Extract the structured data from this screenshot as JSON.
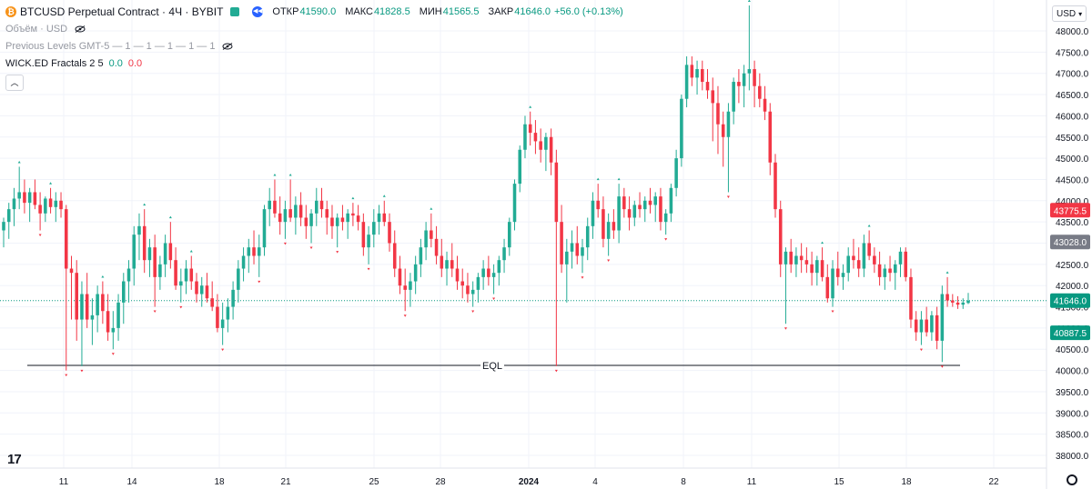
{
  "legend": {
    "symbol": "BTCUSD Perpetual Contract · 4Ч · BYBIT",
    "ohlc": [
      {
        "label": "ОТКР",
        "value": "41590.0"
      },
      {
        "label": "МАКС",
        "value": "41828.5"
      },
      {
        "label": "МИН",
        "value": "41565.5"
      },
      {
        "label": "ЗАКР",
        "value": "41646.0"
      }
    ],
    "change": "+56.0 (+0.13%)",
    "volume_label": "Объём · USD",
    "prev_levels_label": "Previous Levels GMT-5 — 1 — 1 — 1 — 1 — 1",
    "fractals_label": "WICK.ED Fractals 2 5",
    "fractals_val1": "0.0",
    "fractals_val2": "0.0"
  },
  "currency": "USD",
  "colors": {
    "up": "#22ab94",
    "down": "#f23645",
    "grid": "#f0f3fa",
    "axis_text": "#131722",
    "last_price_tag": "#089981",
    "gray_tag": "#787b86"
  },
  "chart_data": {
    "type": "candlestick",
    "y_axis_ticks": [
      "38000.0",
      "38500.0",
      "39000.0",
      "39500.0",
      "40000.0",
      "40500.0",
      "41000.0",
      "41500.0",
      "42000.0",
      "42500.0",
      "43000.0",
      "43500.0",
      "44000.0",
      "44500.0",
      "45000.0",
      "45500.0",
      "46000.0",
      "46500.0",
      "47000.0",
      "47500.0",
      "48000.0"
    ],
    "x_axis_ticks": [
      "11",
      "14",
      "18",
      "21",
      "25",
      "28",
      "2024",
      "4",
      "8",
      "11",
      "15",
      "18",
      "22"
    ],
    "ylim": [
      37700,
      48300
    ],
    "price_tags": [
      {
        "label": "43775.5",
        "value": 43775.5,
        "kind": "down"
      },
      {
        "label": "43028.0",
        "value": 43028.0,
        "kind": "gray"
      },
      {
        "label": "41646.0",
        "value": 41646.0,
        "kind": "last"
      },
      {
        "label": "40887.5",
        "value": 40887.5,
        "kind": "up"
      }
    ],
    "last_price": 41646.0,
    "eql": {
      "label": "EQL",
      "value": 40120
    },
    "candles": [
      [
        43300,
        43600,
        42900,
        43500
      ],
      [
        43500,
        43950,
        43100,
        43800
      ],
      [
        43800,
        44300,
        43400,
        44050
      ],
      [
        44050,
        44800,
        43800,
        44200
      ],
      [
        44200,
        44500,
        43700,
        43950
      ],
      [
        43950,
        44300,
        43500,
        44200
      ],
      [
        44200,
        44500,
        43800,
        43900
      ],
      [
        43900,
        44200,
        43300,
        43700
      ],
      [
        43700,
        44100,
        43500,
        44050
      ],
      [
        44050,
        44300,
        43700,
        43850
      ],
      [
        43850,
        44200,
        43500,
        44000
      ],
      [
        44000,
        44200,
        43600,
        43800
      ],
      [
        43800,
        43900,
        40000,
        42400
      ],
      [
        42400,
        42700,
        41200,
        42300
      ],
      [
        42300,
        42600,
        40700,
        41200
      ],
      [
        41200,
        42100,
        40100,
        41800
      ],
      [
        41800,
        42300,
        41000,
        41200
      ],
      [
        41200,
        41700,
        40600,
        41300
      ],
      [
        41300,
        42000,
        40900,
        41800
      ],
      [
        41800,
        42100,
        41100,
        41400
      ],
      [
        41400,
        41800,
        40700,
        40900
      ],
      [
        40900,
        41400,
        40500,
        41000
      ],
      [
        41000,
        41800,
        40700,
        41600
      ],
      [
        41600,
        42300,
        41100,
        42100
      ],
      [
        42100,
        42600,
        41600,
        42400
      ],
      [
        42400,
        43400,
        42000,
        43200
      ],
      [
        43200,
        43700,
        42600,
        43400
      ],
      [
        43400,
        43800,
        42300,
        42600
      ],
      [
        42600,
        43100,
        42200,
        42900
      ],
      [
        42900,
        43200,
        41500,
        42200
      ],
      [
        42200,
        42700,
        41900,
        42500
      ],
      [
        42500,
        43200,
        42200,
        43000
      ],
      [
        43000,
        43500,
        42400,
        42600
      ],
      [
        42600,
        42900,
        41900,
        42000
      ],
      [
        42000,
        42400,
        41600,
        42100
      ],
      [
        42100,
        42600,
        41800,
        42400
      ],
      [
        42400,
        42700,
        41900,
        42100
      ],
      [
        42100,
        42300,
        41600,
        41800
      ],
      [
        41800,
        42200,
        41500,
        42000
      ],
      [
        42000,
        42300,
        41600,
        41700
      ],
      [
        41700,
        42100,
        41400,
        41500
      ],
      [
        41500,
        41800,
        40900,
        41000
      ],
      [
        41000,
        41600,
        40600,
        41200
      ],
      [
        41200,
        41700,
        40900,
        41500
      ],
      [
        41500,
        42100,
        41200,
        41900
      ],
      [
        41900,
        42600,
        41600,
        42400
      ],
      [
        42400,
        42900,
        42100,
        42700
      ],
      [
        42700,
        43100,
        42300,
        42900
      ],
      [
        42900,
        43300,
        42500,
        42700
      ],
      [
        42700,
        43200,
        42200,
        42900
      ],
      [
        42900,
        43900,
        42700,
        43800
      ],
      [
        43800,
        44300,
        43400,
        44000
      ],
      [
        44000,
        44500,
        43600,
        43700
      ],
      [
        43700,
        44100,
        43200,
        43500
      ],
      [
        43500,
        44000,
        43100,
        43800
      ],
      [
        43800,
        44500,
        43500,
        43600
      ],
      [
        43600,
        44100,
        43200,
        43900
      ],
      [
        43900,
        44200,
        43400,
        43600
      ],
      [
        43600,
        43900,
        43100,
        43400
      ],
      [
        43400,
        43800,
        43000,
        43700
      ],
      [
        43700,
        44300,
        43400,
        44000
      ],
      [
        44000,
        44300,
        43600,
        43800
      ],
      [
        43800,
        44000,
        43200,
        43600
      ],
      [
        43600,
        43900,
        43100,
        43400
      ],
      [
        43400,
        43700,
        42900,
        43600
      ],
      [
        43600,
        43900,
        43300,
        43500
      ],
      [
        43500,
        43800,
        43100,
        43700
      ],
      [
        43700,
        43950,
        43400,
        43650
      ],
      [
        43650,
        43900,
        43300,
        43500
      ],
      [
        43500,
        43700,
        42700,
        42900
      ],
      [
        42900,
        43400,
        42500,
        43200
      ],
      [
        43200,
        43800,
        42900,
        43500
      ],
      [
        43500,
        43900,
        43200,
        43700
      ],
      [
        43700,
        44000,
        43400,
        43500
      ],
      [
        43500,
        43700,
        42800,
        43000
      ],
      [
        43000,
        43300,
        42200,
        42400
      ],
      [
        42400,
        42700,
        41800,
        42000
      ],
      [
        42000,
        42400,
        41400,
        41900
      ],
      [
        41900,
        42300,
        41500,
        42100
      ],
      [
        42100,
        42700,
        41800,
        42500
      ],
      [
        42500,
        43100,
        42200,
        42900
      ],
      [
        42900,
        43500,
        42600,
        43300
      ],
      [
        43300,
        43700,
        42900,
        43100
      ],
      [
        43100,
        43400,
        42500,
        42700
      ],
      [
        42700,
        43100,
        42200,
        42400
      ],
      [
        42400,
        42800,
        42000,
        42600
      ],
      [
        42600,
        43000,
        42200,
        42400
      ],
      [
        42400,
        42700,
        41900,
        42100
      ],
      [
        42100,
        42400,
        41700,
        42000
      ],
      [
        42000,
        42300,
        41600,
        41800
      ],
      [
        41800,
        42100,
        41500,
        41900
      ],
      [
        41900,
        42300,
        41600,
        42200
      ],
      [
        42200,
        42600,
        41900,
        42400
      ],
      [
        42400,
        42700,
        42000,
        42200
      ],
      [
        42200,
        42500,
        41800,
        42300
      ],
      [
        42300,
        42700,
        42000,
        42600
      ],
      [
        42600,
        43100,
        42300,
        42900
      ],
      [
        42900,
        43600,
        42700,
        43500
      ],
      [
        43500,
        44500,
        43300,
        44400
      ],
      [
        44400,
        45300,
        44200,
        45200
      ],
      [
        45200,
        46000,
        45000,
        45800
      ],
      [
        45800,
        46100,
        45300,
        45600
      ],
      [
        45600,
        45900,
        45100,
        45400
      ],
      [
        45400,
        45700,
        44900,
        45200
      ],
      [
        45200,
        45600,
        44700,
        45500
      ],
      [
        45500,
        45700,
        44600,
        44900
      ],
      [
        44900,
        45200,
        40100,
        43500
      ],
      [
        43500,
        43900,
        42300,
        42500
      ],
      [
        42500,
        43100,
        41600,
        42800
      ],
      [
        42800,
        43300,
        42400,
        43000
      ],
      [
        43000,
        43400,
        42500,
        42700
      ],
      [
        42700,
        43100,
        42300,
        42900
      ],
      [
        42900,
        43600,
        42600,
        43400
      ],
      [
        43400,
        44200,
        43100,
        44000
      ],
      [
        44000,
        44400,
        43600,
        43800
      ],
      [
        43800,
        44100,
        42900,
        43100
      ],
      [
        43100,
        43700,
        42700,
        43500
      ],
      [
        43500,
        43800,
        43100,
        43300
      ],
      [
        43300,
        44400,
        43000,
        44100
      ],
      [
        44100,
        44300,
        43600,
        43800
      ],
      [
        43800,
        44100,
        43300,
        43600
      ],
      [
        43600,
        44000,
        43400,
        43900
      ],
      [
        43900,
        44200,
        43600,
        43800
      ],
      [
        43800,
        44100,
        43500,
        44000
      ],
      [
        44000,
        44300,
        43700,
        43900
      ],
      [
        43900,
        44200,
        43500,
        44100
      ],
      [
        44100,
        44300,
        43300,
        43500
      ],
      [
        43500,
        43800,
        43200,
        43700
      ],
      [
        43700,
        44400,
        43500,
        44300
      ],
      [
        44300,
        45200,
        44100,
        45000
      ],
      [
        45000,
        46500,
        44800,
        46400
      ],
      [
        46400,
        47400,
        46200,
        47200
      ],
      [
        47200,
        47400,
        46700,
        46900
      ],
      [
        46900,
        47300,
        46500,
        47100
      ],
      [
        47100,
        47300,
        46600,
        46800
      ],
      [
        46800,
        47100,
        46400,
        46600
      ],
      [
        46600,
        46900,
        45400,
        46300
      ],
      [
        46300,
        46700,
        45100,
        45800
      ],
      [
        45800,
        46100,
        44800,
        45500
      ],
      [
        45500,
        46300,
        44200,
        46100
      ],
      [
        46100,
        46900,
        45800,
        46800
      ],
      [
        46800,
        47100,
        46300,
        46700
      ],
      [
        46700,
        47200,
        46200,
        47000
      ],
      [
        47000,
        48600,
        46600,
        47100
      ],
      [
        47100,
        47300,
        46200,
        46700
      ],
      [
        46700,
        47000,
        46200,
        46400
      ],
      [
        46400,
        46700,
        45900,
        46100
      ],
      [
        46100,
        46300,
        44600,
        44900
      ],
      [
        44900,
        45100,
        43600,
        43800
      ],
      [
        43800,
        44000,
        42200,
        42500
      ],
      [
        42500,
        42900,
        41100,
        42800
      ],
      [
        42800,
        43100,
        42300,
        42500
      ],
      [
        42500,
        42900,
        42200,
        42700
      ],
      [
        42700,
        43000,
        42300,
        42600
      ],
      [
        42600,
        42900,
        42300,
        42500
      ],
      [
        42500,
        42800,
        42000,
        42300
      ],
      [
        42300,
        42700,
        42000,
        42600
      ],
      [
        42600,
        42900,
        42100,
        42200
      ],
      [
        42200,
        42500,
        41600,
        41700
      ],
      [
        41700,
        42600,
        41500,
        42400
      ],
      [
        42400,
        42800,
        42000,
        42200
      ],
      [
        42200,
        42500,
        41900,
        42300
      ],
      [
        42300,
        42900,
        42100,
        42700
      ],
      [
        42700,
        43100,
        42400,
        42600
      ],
      [
        42600,
        42900,
        42200,
        42400
      ],
      [
        42400,
        43200,
        42200,
        43000
      ],
      [
        43000,
        43300,
        42600,
        42700
      ],
      [
        42700,
        42900,
        42300,
        42500
      ],
      [
        42500,
        42800,
        42000,
        42200
      ],
      [
        42200,
        42500,
        41900,
        42400
      ],
      [
        42400,
        42700,
        42100,
        42300
      ],
      [
        42300,
        42600,
        41900,
        42500
      ],
      [
        42500,
        42900,
        42200,
        42800
      ],
      [
        42800,
        42900,
        42100,
        42200
      ],
      [
        42200,
        42400,
        41000,
        41200
      ],
      [
        41200,
        41400,
        40700,
        40900
      ],
      [
        40900,
        41400,
        40600,
        41200
      ],
      [
        41200,
        41500,
        40800,
        40900
      ],
      [
        40900,
        41400,
        40700,
        41300
      ],
      [
        41300,
        41500,
        40500,
        40700
      ],
      [
        40700,
        42000,
        40200,
        41800
      ],
      [
        41800,
        42200,
        41500,
        41650
      ],
      [
        41650,
        41800,
        41500,
        41600
      ],
      [
        41600,
        41750,
        41450,
        41550
      ],
      [
        41550,
        41700,
        41450,
        41600
      ],
      [
        41590,
        41828.5,
        41565.5,
        41646
      ]
    ]
  }
}
